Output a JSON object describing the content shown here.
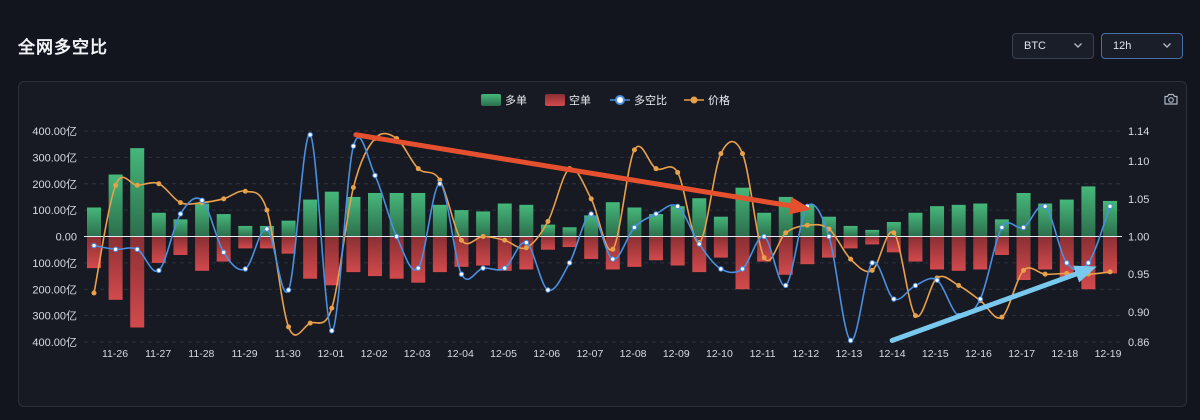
{
  "page": {
    "title": "全网多空比",
    "symbol_select": {
      "value": "BTC",
      "icon": "chevron-down-icon"
    },
    "interval_select": {
      "value": "12h",
      "icon": "chevron-down-icon"
    },
    "screenshot_icon": "camera-icon"
  },
  "colors": {
    "background": "#12151d",
    "panel": "#171a23",
    "long_bar": "#3aa26a",
    "short_bar": "#c84346",
    "ratio_line": "#4a8fe0",
    "price_line": "#e8a04b",
    "arrow_red": "#e5512e",
    "arrow_blue": "#79c8ee"
  },
  "chart_data": {
    "type": "bar",
    "legend": [
      "多单",
      "空单",
      "多空比",
      "价格"
    ],
    "legend_position": "top-center",
    "grid": true,
    "x_tick_labels": [
      "11-26",
      "11-27",
      "11-28",
      "11-29",
      "11-30",
      "12-01",
      "12-02",
      "12-03",
      "12-04",
      "12-05",
      "12-06",
      "12-07",
      "12-08",
      "12-09",
      "12-10",
      "12-11",
      "12-12",
      "12-13",
      "12-14",
      "12-15",
      "12-16",
      "12-17",
      "12-18",
      "12-19"
    ],
    "y_left": {
      "ticks": [
        "400.00亿",
        "300.00亿",
        "200.00亿",
        "100.00亿",
        "0.00",
        "100.00亿",
        "200.00亿",
        "300.00亿",
        "400.00亿"
      ],
      "ylim": [
        -400,
        400
      ],
      "unit": "亿"
    },
    "y_right": {
      "ticks": [
        "1.14",
        "1.10",
        "1.05",
        "1.00",
        "0.95",
        "0.90",
        "0.86"
      ],
      "ylim": [
        0.86,
        1.14
      ]
    },
    "series": [
      {
        "name": "多单",
        "type": "bar",
        "values": [
          110,
          235,
          335,
          90,
          65,
          125,
          85,
          40,
          40,
          60,
          140,
          170,
          150,
          165,
          165,
          165,
          120,
          100,
          95,
          125,
          120,
          45,
          35,
          80,
          130,
          110,
          85,
          115,
          145,
          75,
          185,
          90,
          150,
          120,
          75,
          40,
          25,
          55,
          90,
          115,
          120,
          125,
          65,
          165,
          125,
          140,
          190,
          135
        ]
      },
      {
        "name": "空单",
        "type": "bar",
        "values": [
          -120,
          -240,
          -345,
          -100,
          -70,
          -130,
          -95,
          -45,
          -45,
          -65,
          -160,
          -185,
          -135,
          -150,
          -160,
          -175,
          -135,
          -115,
          -110,
          -130,
          -125,
          -50,
          -40,
          -85,
          -125,
          -115,
          -90,
          -110,
          -135,
          -80,
          -200,
          -95,
          -145,
          -105,
          -80,
          -45,
          -30,
          -60,
          -95,
          -125,
          -130,
          -125,
          -70,
          -165,
          -125,
          -155,
          -200,
          -140
        ]
      },
      {
        "name": "多空比",
        "type": "line",
        "values": [
          0.988,
          0.983,
          0.983,
          0.955,
          1.03,
          1.048,
          0.979,
          0.957,
          1.01,
          0.929,
          1.135,
          0.875,
          1.12,
          1.081,
          1.0,
          0.958,
          1.07,
          0.95,
          0.958,
          0.958,
          0.992,
          0.929,
          0.965,
          1.03,
          0.97,
          1.012,
          1.03,
          1.04,
          0.99,
          0.957,
          0.957,
          1.0,
          0.935,
          1.04,
          1.0,
          0.862,
          0.965,
          0.917,
          0.935,
          0.942,
          0.895,
          0.917,
          1.012,
          1.012,
          1.04,
          0.965,
          0.965,
          1.04
        ]
      },
      {
        "name": "价格",
        "type": "line",
        "values": [
          0.925,
          1.068,
          1.068,
          1.07,
          1.045,
          1.045,
          1.05,
          1.06,
          1.035,
          0.88,
          0.885,
          0.905,
          1.065,
          1.13,
          1.13,
          1.09,
          1.075,
          0.995,
          1.0,
          0.995,
          0.985,
          1.02,
          1.09,
          1.05,
          0.983,
          1.115,
          1.09,
          1.085,
          0.992,
          1.11,
          1.11,
          0.972,
          1.005,
          1.015,
          1.01,
          0.97,
          0.955,
          1.005,
          0.895,
          0.945,
          0.935,
          0.915,
          0.893,
          0.955,
          0.95,
          0.951,
          0.95,
          0.953
        ]
      }
    ],
    "annotations": [
      {
        "type": "arrow",
        "color": "red",
        "from": {
          "x": "12-01",
          "y": 1.135
        },
        "to": {
          "x": "12-12",
          "y": 1.04
        }
      },
      {
        "type": "arrow",
        "color": "blue",
        "from": {
          "x": "12-14",
          "y": 0.862
        },
        "to": {
          "x": "12-18",
          "y": 0.952
        }
      }
    ]
  }
}
